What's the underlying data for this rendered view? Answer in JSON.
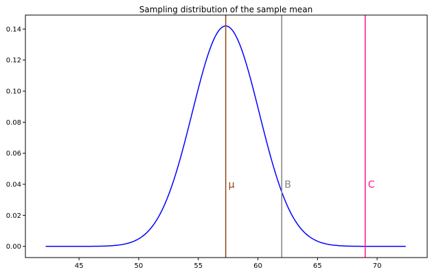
{
  "chart_data": {
    "type": "line",
    "title": "Sampling distribution of the sample mean",
    "xlabel": "",
    "ylabel": "",
    "xlim": [
      40.5,
      74.2
    ],
    "ylim": [
      -0.0072,
      0.149
    ],
    "x_ticks": [
      45,
      50,
      55,
      60,
      65,
      70
    ],
    "y_ticks": [
      0.0,
      0.02,
      0.04,
      0.06,
      0.08,
      0.1,
      0.12,
      0.14
    ],
    "grid": false,
    "series": [
      {
        "color": "#0000ff",
        "distribution": "normal",
        "mean": 57.3,
        "sd": 2.81,
        "x_range": [
          42.2,
          72.4
        ],
        "peak_y": 0.142
      }
    ],
    "vertical_lines": [
      {
        "label": "μ",
        "x": 57.3,
        "color": "#8b4513",
        "label_y": 0.04
      },
      {
        "label": "B",
        "x": 62.0,
        "color": "#808080",
        "label_y": 0.04
      },
      {
        "label": "C",
        "x": 69.0,
        "color": "#ff1493",
        "label_y": 0.04
      }
    ]
  }
}
